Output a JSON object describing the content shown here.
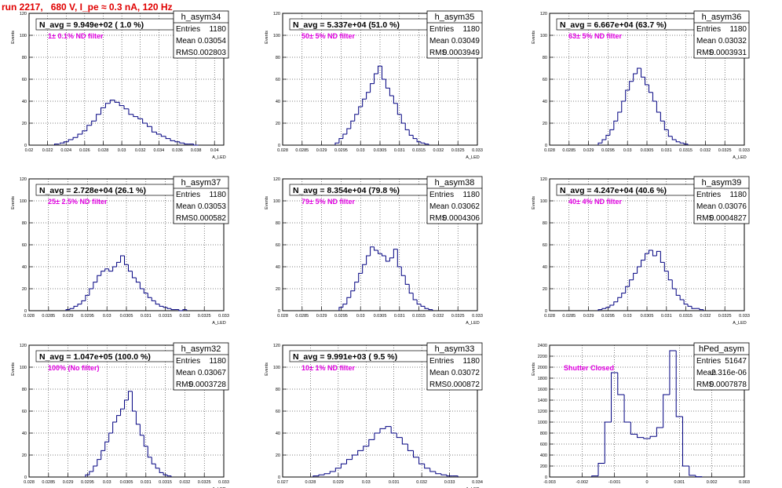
{
  "header": {
    "run_title": "run 2217,   680 V, I_pe ≈ 0.3 nA, 120 Hz"
  },
  "colors": {
    "histogram_line": "#000080",
    "annotation_text": "#e000e0",
    "title_red": "#e00000"
  },
  "chart_data": [
    {
      "type": "histogram",
      "name": "h_asym34",
      "navg": "N_avg = 9.949e+02 ( 1.0 %)",
      "note": "1± 0.1% ND filter",
      "stats": [
        [
          "Entries",
          "1180"
        ],
        [
          "Mean",
          "0.03054"
        ],
        [
          "RMS",
          "0.002803"
        ]
      ],
      "ylabel": "Events",
      "xlabel": "A_LED",
      "xlim": [
        0.02,
        0.041
      ],
      "ylim": [
        0,
        120
      ],
      "xticks": [
        0.02,
        0.022,
        0.024,
        0.026,
        0.028,
        0.03,
        0.032,
        0.034,
        0.036,
        0.038,
        0.04
      ],
      "xtick_labels": [
        "0.02",
        "0.022",
        "0.024",
        "0.026",
        "0.028",
        "0.03",
        "0.032",
        "0.034",
        "0.036",
        "0.038",
        "0.04"
      ],
      "yticks": [
        0,
        20,
        40,
        60,
        80,
        100,
        120
      ],
      "ytick_labels": [
        "0",
        "20",
        "40",
        "60",
        "80",
        "100",
        "120"
      ],
      "x": [
        0.023,
        0.0236,
        0.024,
        0.0245,
        0.025,
        0.0255,
        0.026,
        0.0265,
        0.027,
        0.0275,
        0.028,
        0.0285,
        0.029,
        0.0295,
        0.03,
        0.0305,
        0.031,
        0.0315,
        0.032,
        0.0325,
        0.033,
        0.0335,
        0.034,
        0.0345,
        0.035,
        0.0355,
        0.036,
        0.0365,
        0.037,
        0.0375,
        0.038
      ],
      "y": [
        1,
        2,
        3,
        5,
        7,
        10,
        13,
        18,
        22,
        28,
        34,
        38,
        41,
        39,
        36,
        33,
        28,
        26,
        24,
        20,
        17,
        12,
        10,
        8,
        6,
        4,
        3,
        2,
        1,
        1,
        0
      ]
    },
    {
      "type": "histogram",
      "name": "h_asym35",
      "navg": "N_avg = 5.337e+04 (51.0 %)",
      "note": "50± 5% ND filter",
      "stats": [
        [
          "Entries",
          "1180"
        ],
        [
          "Mean",
          "0.03049"
        ],
        [
          "RMS",
          "0.0003949"
        ]
      ],
      "ylabel": "Events",
      "xlabel": "A_LED",
      "xlim": [
        0.028,
        0.033
      ],
      "ylim": [
        0,
        120
      ],
      "xticks": [
        0.028,
        0.0285,
        0.029,
        0.0295,
        0.03,
        0.0305,
        0.031,
        0.0315,
        0.032,
        0.0325,
        0.033
      ],
      "xtick_labels": [
        "0.028",
        "0.0285",
        "0.029",
        "0.0295",
        "0.03",
        "0.0305",
        "0.031",
        "0.0315",
        "0.032",
        "0.0325",
        "0.033"
      ],
      "yticks": [
        0,
        20,
        40,
        60,
        80,
        100,
        120
      ],
      "ytick_labels": [
        "0",
        "20",
        "40",
        "60",
        "80",
        "100",
        "120"
      ],
      "x": [
        0.0294,
        0.0295,
        0.0296,
        0.0297,
        0.0298,
        0.0299,
        0.03,
        0.0301,
        0.0302,
        0.0303,
        0.0304,
        0.0305,
        0.0306,
        0.0307,
        0.0308,
        0.0309,
        0.031,
        0.0311,
        0.0312,
        0.0313,
        0.0314,
        0.0315,
        0.0316,
        0.0317
      ],
      "y": [
        2,
        6,
        10,
        15,
        22,
        28,
        35,
        42,
        48,
        56,
        65,
        72,
        60,
        52,
        45,
        38,
        28,
        20,
        14,
        9,
        6,
        3,
        2,
        1
      ]
    },
    {
      "type": "histogram",
      "name": "h_asym36",
      "navg": "N_avg = 6.667e+04 (63.7 %)",
      "note": "63± 5% ND filter",
      "stats": [
        [
          "Entries",
          "1180"
        ],
        [
          "Mean",
          "0.03032"
        ],
        [
          "RMS",
          "0.0003931"
        ]
      ],
      "ylabel": "Events",
      "xlabel": "A_LED",
      "xlim": [
        0.028,
        0.033
      ],
      "ylim": [
        0,
        120
      ],
      "xticks": [
        0.028,
        0.0285,
        0.029,
        0.0295,
        0.03,
        0.0305,
        0.031,
        0.0315,
        0.032,
        0.0325,
        0.033
      ],
      "xtick_labels": [
        "0.028",
        "0.0285",
        "0.029",
        "0.0295",
        "0.03",
        "0.0305",
        "0.031",
        "0.0315",
        "0.032",
        "0.0325",
        "0.033"
      ],
      "yticks": [
        0,
        20,
        40,
        60,
        80,
        100,
        120
      ],
      "ytick_labels": [
        "0",
        "20",
        "40",
        "60",
        "80",
        "100",
        "120"
      ],
      "x": [
        0.0293,
        0.0294,
        0.0295,
        0.0296,
        0.0297,
        0.0298,
        0.0299,
        0.03,
        0.0301,
        0.0302,
        0.0303,
        0.0304,
        0.0305,
        0.0306,
        0.0307,
        0.0308,
        0.0309,
        0.031,
        0.0311,
        0.0312,
        0.0313,
        0.0314,
        0.0315
      ],
      "y": [
        2,
        5,
        9,
        14,
        22,
        30,
        40,
        50,
        58,
        65,
        70,
        62,
        55,
        48,
        40,
        30,
        22,
        14,
        8,
        5,
        3,
        2,
        1
      ]
    },
    {
      "type": "histogram",
      "name": "h_asym37",
      "navg": "N_avg = 2.728e+04 (26.1 %)",
      "note": "25± 2.5% ND filter",
      "stats": [
        [
          "Entries",
          "1180"
        ],
        [
          "Mean",
          "0.03053"
        ],
        [
          "RMS",
          "0.000582"
        ]
      ],
      "ylabel": "Events",
      "xlabel": "A_LED",
      "xlim": [
        0.028,
        0.033
      ],
      "ylim": [
        0,
        120
      ],
      "xticks": [
        0.028,
        0.0285,
        0.029,
        0.0295,
        0.03,
        0.0305,
        0.031,
        0.0315,
        0.032,
        0.0325,
        0.033
      ],
      "xtick_labels": [
        "0.028",
        "0.0285",
        "0.029",
        "0.0295",
        "0.03",
        "0.0305",
        "0.031",
        "0.0315",
        "0.032",
        "0.0325",
        "0.033"
      ],
      "yticks": [
        0,
        20,
        40,
        60,
        80,
        100,
        120
      ],
      "ytick_labels": [
        "0",
        "20",
        "40",
        "60",
        "80",
        "100",
        "120"
      ],
      "x": [
        0.029,
        0.0291,
        0.0292,
        0.0293,
        0.0294,
        0.0295,
        0.0296,
        0.0297,
        0.0298,
        0.0299,
        0.03,
        0.0301,
        0.0302,
        0.0303,
        0.0304,
        0.0305,
        0.0306,
        0.0307,
        0.0308,
        0.0309,
        0.031,
        0.0311,
        0.0312,
        0.0313,
        0.0314,
        0.0315,
        0.0316,
        0.0317,
        0.0318,
        0.0319,
        0.032
      ],
      "y": [
        1,
        2,
        4,
        6,
        9,
        14,
        20,
        26,
        32,
        36,
        38,
        36,
        40,
        44,
        50,
        42,
        36,
        30,
        26,
        20,
        16,
        12,
        9,
        6,
        4,
        3,
        2,
        1,
        1,
        0,
        1
      ]
    },
    {
      "type": "histogram",
      "name": "h_asym38",
      "navg": "N_avg = 8.354e+04 (79.8 %)",
      "note": "79± 5% ND filter",
      "stats": [
        [
          "Entries",
          "1180"
        ],
        [
          "Mean",
          "0.03062"
        ],
        [
          "RMS",
          "0.0004306"
        ]
      ],
      "ylabel": "Events",
      "xlabel": "A_LED",
      "xlim": [
        0.028,
        0.033
      ],
      "ylim": [
        0,
        120
      ],
      "xticks": [
        0.028,
        0.0285,
        0.029,
        0.0295,
        0.03,
        0.0305,
        0.031,
        0.0315,
        0.032,
        0.0325,
        0.033
      ],
      "xtick_labels": [
        "0.028",
        "0.0285",
        "0.029",
        "0.0295",
        "0.03",
        "0.0305",
        "0.031",
        "0.0315",
        "0.032",
        "0.0325",
        "0.033"
      ],
      "yticks": [
        0,
        20,
        40,
        60,
        80,
        100,
        120
      ],
      "ytick_labels": [
        "0",
        "20",
        "40",
        "60",
        "80",
        "100",
        "120"
      ],
      "x": [
        0.0295,
        0.0296,
        0.0297,
        0.0298,
        0.0299,
        0.03,
        0.0301,
        0.0302,
        0.0303,
        0.0304,
        0.0305,
        0.0306,
        0.0307,
        0.0308,
        0.0309,
        0.031,
        0.0311,
        0.0312,
        0.0313,
        0.0314,
        0.0315,
        0.0316,
        0.0317,
        0.0318
      ],
      "y": [
        3,
        6,
        12,
        18,
        26,
        34,
        42,
        50,
        58,
        55,
        52,
        50,
        45,
        48,
        56,
        40,
        32,
        24,
        16,
        10,
        6,
        4,
        2,
        1
      ]
    },
    {
      "type": "histogram",
      "name": "h_asym39",
      "navg": "N_avg = 4.247e+04 (40.6 %)",
      "note": "40± 4% ND filter",
      "stats": [
        [
          "Entries",
          "1180"
        ],
        [
          "Mean",
          "0.03076"
        ],
        [
          "RMS",
          "0.0004827"
        ]
      ],
      "ylabel": "Events",
      "xlabel": "A_LED",
      "xlim": [
        0.028,
        0.033
      ],
      "ylim": [
        0,
        120
      ],
      "xticks": [
        0.028,
        0.0285,
        0.029,
        0.0295,
        0.03,
        0.0305,
        0.031,
        0.0315,
        0.032,
        0.0325,
        0.033
      ],
      "xtick_labels": [
        "0.028",
        "0.0285",
        "0.029",
        "0.0295",
        "0.03",
        "0.0305",
        "0.031",
        "0.0315",
        "0.032",
        "0.0325",
        "0.033"
      ],
      "yticks": [
        0,
        20,
        40,
        60,
        80,
        100,
        120
      ],
      "ytick_labels": [
        "0",
        "20",
        "40",
        "60",
        "80",
        "100",
        "120"
      ],
      "x": [
        0.0293,
        0.0294,
        0.0295,
        0.0296,
        0.0297,
        0.0298,
        0.0299,
        0.03,
        0.0301,
        0.0302,
        0.0303,
        0.0304,
        0.0305,
        0.0306,
        0.0307,
        0.0308,
        0.0309,
        0.031,
        0.0311,
        0.0312,
        0.0313,
        0.0314,
        0.0315,
        0.0316,
        0.0317,
        0.0318,
        0.0319
      ],
      "y": [
        1,
        2,
        3,
        5,
        8,
        12,
        16,
        22,
        28,
        34,
        40,
        46,
        52,
        55,
        50,
        54,
        44,
        36,
        28,
        20,
        14,
        10,
        6,
        4,
        2,
        2,
        1
      ]
    },
    {
      "type": "histogram",
      "name": "h_asym32",
      "navg": "N_avg = 1.047e+05 (100.0 %)",
      "note": "100% (No filter)",
      "stats": [
        [
          "Entries",
          "1180"
        ],
        [
          "Mean",
          "0.03067"
        ],
        [
          "RMS",
          "0.0003728"
        ]
      ],
      "ylabel": "Events",
      "xlabel": "A_LED",
      "xlim": [
        0.028,
        0.033
      ],
      "ylim": [
        0,
        120
      ],
      "xticks": [
        0.028,
        0.0285,
        0.029,
        0.0295,
        0.03,
        0.0305,
        0.031,
        0.0315,
        0.032,
        0.0325,
        0.033
      ],
      "xtick_labels": [
        "0.028",
        "0.0285",
        "0.029",
        "0.0295",
        "0.03",
        "0.0305",
        "0.031",
        "0.0315",
        "0.032",
        "0.0325",
        "0.033"
      ],
      "yticks": [
        0,
        20,
        40,
        60,
        80,
        100,
        120
      ],
      "ytick_labels": [
        "0",
        "20",
        "40",
        "60",
        "80",
        "100",
        "120"
      ],
      "x": [
        0.0295,
        0.0296,
        0.0297,
        0.0298,
        0.0299,
        0.03,
        0.0301,
        0.0302,
        0.0303,
        0.0304,
        0.0305,
        0.0306,
        0.0307,
        0.0308,
        0.0309,
        0.031,
        0.0311,
        0.0312,
        0.0313,
        0.0314,
        0.0315,
        0.0316
      ],
      "y": [
        2,
        5,
        10,
        16,
        24,
        32,
        40,
        50,
        56,
        62,
        70,
        78,
        60,
        48,
        38,
        28,
        18,
        12,
        8,
        4,
        2,
        1
      ]
    },
    {
      "type": "histogram",
      "name": "h_asym33",
      "navg": "N_avg = 9.991e+03 ( 9.5 %)",
      "note": "10± 1% ND filter",
      "stats": [
        [
          "Entries",
          "1180"
        ],
        [
          "Mean",
          "0.03072"
        ],
        [
          "RMS",
          "0.000872"
        ]
      ],
      "ylabel": "Events",
      "xlabel": "A_LED",
      "xlim": [
        0.027,
        0.034
      ],
      "ylim": [
        0,
        120
      ],
      "xticks": [
        0.027,
        0.028,
        0.029,
        0.03,
        0.031,
        0.032,
        0.033,
        0.034
      ],
      "xtick_labels": [
        "0.027",
        "0.028",
        "0.029",
        "0.03",
        "0.031",
        "0.032",
        "0.033",
        "0.034"
      ],
      "yticks": [
        0,
        20,
        40,
        60,
        80,
        100,
        120
      ],
      "ytick_labels": [
        "0",
        "20",
        "40",
        "60",
        "80",
        "100",
        "120"
      ],
      "x": [
        0.0282,
        0.0284,
        0.0286,
        0.0288,
        0.029,
        0.0292,
        0.0294,
        0.0296,
        0.0298,
        0.03,
        0.0302,
        0.0304,
        0.0306,
        0.0308,
        0.031,
        0.0312,
        0.0314,
        0.0316,
        0.0318,
        0.032,
        0.0322,
        0.0324,
        0.0326,
        0.0328,
        0.033,
        0.0332
      ],
      "y": [
        1,
        2,
        3,
        5,
        8,
        12,
        16,
        20,
        24,
        28,
        34,
        40,
        44,
        46,
        40,
        36,
        30,
        24,
        18,
        12,
        8,
        5,
        3,
        2,
        1,
        1
      ]
    },
    {
      "type": "histogram",
      "name": "hPed_asym",
      "navg": "",
      "note": "Shutter Closed",
      "stats": [
        [
          "Entries",
          "51647"
        ],
        [
          "Mean",
          "-2.316e-06"
        ],
        [
          "RMS",
          "0.0007878"
        ]
      ],
      "ylabel": "Events",
      "xlabel": "",
      "xlim": [
        -0.003,
        0.003
      ],
      "ylim": [
        0,
        2400
      ],
      "xticks": [
        -0.003,
        -0.002,
        -0.001,
        0,
        0.001,
        0.002,
        0.003
      ],
      "xtick_labels": [
        "-0.003",
        "-0.002",
        "-0.001",
        "0",
        "0.001",
        "0.002",
        "0.003"
      ],
      "yticks": [
        0,
        200,
        400,
        600,
        800,
        1000,
        1200,
        1400,
        1600,
        1800,
        2000,
        2200,
        2400
      ],
      "ytick_labels": [
        "0",
        "200",
        "400",
        "600",
        "800",
        "1000",
        "1200",
        "1400",
        "1600",
        "1800",
        "2000",
        "2200",
        "2400"
      ],
      "x": [
        -0.0016,
        -0.0014,
        -0.0012,
        -0.001,
        -0.0008,
        -0.0006,
        -0.0004,
        -0.0002,
        0.0,
        0.0002,
        0.0004,
        0.0006,
        0.0008,
        0.001,
        0.0012,
        0.0014,
        0.0016
      ],
      "y": [
        20,
        250,
        1000,
        1900,
        1500,
        1000,
        780,
        720,
        700,
        740,
        900,
        1500,
        2300,
        1100,
        200,
        30,
        5
      ]
    }
  ]
}
